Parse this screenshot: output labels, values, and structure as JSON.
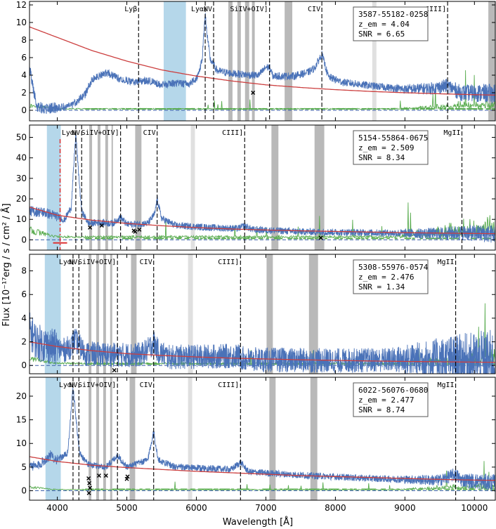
{
  "figure": {
    "xlabel": "Wavelength [Å]",
    "ylabel": "Flux [10⁻¹⁷erg / s / cm² / Å]"
  },
  "chart_data": [
    {
      "type": "line",
      "object_id": "3587-55182-0258",
      "redshift_label": "z_em = 4.04",
      "snr_label": "SNR = 6.65",
      "z": 4.04,
      "snr": 6.65,
      "xlim": [
        3600,
        10300
      ],
      "ylim": [
        -1.2,
        12.4
      ],
      "yticks": [
        0,
        2,
        4,
        6,
        8,
        10,
        12
      ],
      "line_labels": [
        {
          "name": "Lyβ",
          "wavelength": 5169
        },
        {
          "name": "Lyα",
          "wavelength": 6127
        },
        {
          "name": "NV",
          "wavelength": 6248
        },
        {
          "name": "SiIV+OIV]",
          "wavelength": 7053
        },
        {
          "name": "CIV",
          "wavelength": 7805
        },
        {
          "name": "CIII]",
          "wavelength": 9614
        }
      ],
      "blue_band": [
        5530,
        5850
      ],
      "gray_bands": [
        [
          6460,
          6520
        ],
        [
          6590,
          6640
        ],
        [
          6700,
          6760
        ],
        [
          6800,
          6840
        ],
        [
          7270,
          7380
        ],
        [
          10200,
          10300
        ]
      ],
      "light_bands": [
        [
          8530,
          8590
        ]
      ],
      "continuum_fit": [
        [
          3600,
          9.5
        ],
        [
          4000,
          8.3
        ],
        [
          4500,
          6.8
        ],
        [
          5000,
          5.6
        ],
        [
          5500,
          4.6
        ],
        [
          6000,
          3.9
        ],
        [
          6500,
          3.35
        ],
        [
          7000,
          2.9
        ],
        [
          7500,
          2.6
        ],
        [
          8000,
          2.35
        ],
        [
          8500,
          2.15
        ],
        [
          9000,
          2.0
        ],
        [
          9500,
          1.88
        ],
        [
          10000,
          1.78
        ],
        [
          10300,
          1.73
        ]
      ],
      "absorbers": [
        [
          6815,
          2.0
        ]
      ],
      "spectrum_points": [
        [
          3600,
          4.8
        ],
        [
          3700,
          0.5
        ],
        [
          3800,
          0.2
        ],
        [
          4000,
          0.3
        ],
        [
          4200,
          0.5
        ],
        [
          4400,
          1.8
        ],
        [
          4500,
          3.5
        ],
        [
          4700,
          4.3
        ],
        [
          4900,
          3.6
        ],
        [
          5100,
          3.2
        ],
        [
          5300,
          3.4
        ],
        [
          5500,
          2.9
        ],
        [
          5700,
          3.1
        ],
        [
          5900,
          3.0
        ],
        [
          6000,
          3.6
        ],
        [
          6080,
          5.5
        ],
        [
          6127,
          11.0
        ],
        [
          6160,
          8.3
        ],
        [
          6200,
          5.8
        ],
        [
          6300,
          4.5
        ],
        [
          6500,
          4.2
        ],
        [
          6800,
          4.0
        ],
        [
          6900,
          4.0
        ],
        [
          7000,
          4.9
        ],
        [
          7053,
          4.9
        ],
        [
          7100,
          3.9
        ],
        [
          7400,
          3.9
        ],
        [
          7600,
          4.3
        ],
        [
          7700,
          4.8
        ],
        [
          7805,
          6.4
        ],
        [
          7900,
          3.8
        ],
        [
          8100,
          3.2
        ],
        [
          8500,
          2.8
        ],
        [
          9000,
          2.4
        ],
        [
          9400,
          2.5
        ],
        [
          9614,
          2.8
        ],
        [
          9800,
          2.0
        ],
        [
          10300,
          1.9
        ]
      ],
      "error_level": 0.4
    },
    {
      "type": "line",
      "object_id": "5154-55864-0675",
      "redshift_label": "z_em = 2.509",
      "snr_label": "SNR = 8.34",
      "z": 2.509,
      "snr": 8.34,
      "xlim": [
        3600,
        10300
      ],
      "ylim": [
        -5,
        56
      ],
      "yticks": [
        0,
        10,
        20,
        30,
        40,
        50
      ],
      "line_labels": [
        {
          "name": "Lyα",
          "wavelength": 4266
        },
        {
          "name": "NV",
          "wavelength": 4350
        },
        {
          "name": "SiIV+OIV]",
          "wavelength": 4910
        },
        {
          "name": "CIV",
          "wavelength": 5436
        },
        {
          "name": "CIII]",
          "wavelength": 6695
        },
        {
          "name": "MgII",
          "wavelength": 9820
        }
      ],
      "blue_band": [
        3850,
        4050
      ],
      "gray_bands": [
        [
          4460,
          4500
        ],
        [
          4580,
          4620
        ],
        [
          4690,
          4730
        ],
        [
          4780,
          4800
        ],
        [
          5120,
          5210
        ],
        [
          7080,
          7180
        ],
        [
          7700,
          7840
        ]
      ],
      "light_bands": [
        [
          5920,
          5980
        ]
      ],
      "continuum_fit": [
        [
          3600,
          16.0
        ],
        [
          4000,
          12.0
        ],
        [
          4500,
          9.6
        ],
        [
          5000,
          8.0
        ],
        [
          5500,
          6.9
        ],
        [
          6000,
          6.0
        ],
        [
          6500,
          5.3
        ],
        [
          7000,
          4.8
        ],
        [
          7500,
          4.4
        ],
        [
          8000,
          4.1
        ],
        [
          8500,
          3.8
        ],
        [
          9000,
          3.5
        ],
        [
          9500,
          3.3
        ],
        [
          10000,
          3.1
        ],
        [
          10300,
          3.0
        ]
      ],
      "absorbers": [
        [
          4470,
          6.0
        ],
        [
          4640,
          7.0
        ],
        [
          5100,
          4.5
        ],
        [
          5120,
          4.0
        ],
        [
          5180,
          5.0
        ],
        [
          7790,
          1.0
        ]
      ],
      "dla_marker": 4040,
      "spectrum_points": [
        [
          3600,
          14.0
        ],
        [
          3800,
          13.5
        ],
        [
          4000,
          11.5
        ],
        [
          4100,
          9.5
        ],
        [
          4200,
          16.0
        ],
        [
          4266,
          52.0
        ],
        [
          4300,
          35.0
        ],
        [
          4350,
          14.0
        ],
        [
          4450,
          8.0
        ],
        [
          4600,
          8.5
        ],
        [
          4800,
          8.0
        ],
        [
          4910,
          11.0
        ],
        [
          5000,
          7.5
        ],
        [
          5300,
          8.0
        ],
        [
          5400,
          12.5
        ],
        [
          5436,
          20.0
        ],
        [
          5500,
          10.5
        ],
        [
          5700,
          7.0
        ],
        [
          6200,
          6.0
        ],
        [
          6600,
          5.5
        ],
        [
          6695,
          7.0
        ],
        [
          6800,
          5.0
        ],
        [
          7500,
          4.0
        ],
        [
          8500,
          3.5
        ],
        [
          9500,
          3.0
        ],
        [
          9820,
          3.5
        ],
        [
          10300,
          2.8
        ]
      ],
      "error_level": 0.8
    },
    {
      "type": "line",
      "object_id": "5308-55976-0574",
      "redshift_label": "z_em = 2.476",
      "snr_label": "SNR = 1.34",
      "z": 2.476,
      "snr": 1.34,
      "xlim": [
        3600,
        10300
      ],
      "ylim": [
        -0.7,
        9.4
      ],
      "yticks": [
        0,
        2,
        4,
        6,
        8
      ],
      "line_labels": [
        {
          "name": "Lyα",
          "wavelength": 4226
        },
        {
          "name": "NV",
          "wavelength": 4310
        },
        {
          "name": "SiIV+OIV]",
          "wavelength": 4865
        },
        {
          "name": "CIV",
          "wavelength": 5386
        },
        {
          "name": "CIII]",
          "wavelength": 6635
        },
        {
          "name": "MgII",
          "wavelength": 9730
        }
      ],
      "blue_band": [
        3820,
        4050
      ],
      "gray_bands": [
        [
          4450,
          4490
        ],
        [
          4560,
          4600
        ],
        [
          4660,
          4700
        ],
        [
          4760,
          4790
        ],
        [
          5060,
          5140
        ],
        [
          7010,
          7100
        ],
        [
          7620,
          7750
        ]
      ],
      "light_bands": [
        [
          5880,
          5950
        ]
      ],
      "continuum_fit": [
        [
          3600,
          2.0
        ],
        [
          4000,
          1.6
        ],
        [
          4500,
          1.25
        ],
        [
          5000,
          1.0
        ],
        [
          5500,
          0.85
        ],
        [
          6000,
          0.72
        ],
        [
          6500,
          0.62
        ],
        [
          7000,
          0.55
        ],
        [
          7500,
          0.48
        ],
        [
          8000,
          0.43
        ],
        [
          8500,
          0.38
        ],
        [
          9000,
          0.34
        ],
        [
          9500,
          0.31
        ],
        [
          10000,
          0.28
        ],
        [
          10300,
          0.27
        ]
      ],
      "absorbers": [
        [
          4820,
          -0.4
        ]
      ],
      "spectrum_points": [
        [
          3600,
          3.0
        ],
        [
          3700,
          2.0
        ],
        [
          3900,
          1.6
        ],
        [
          4100,
          1.3
        ],
        [
          4200,
          1.6
        ],
        [
          4250,
          2.2
        ],
        [
          4300,
          1.8
        ],
        [
          4400,
          1.0
        ],
        [
          4800,
          0.9
        ],
        [
          5200,
          0.9
        ],
        [
          5300,
          1.3
        ],
        [
          5386,
          2.0
        ],
        [
          5450,
          1.2
        ],
        [
          5600,
          0.7
        ],
        [
          6600,
          0.8
        ],
        [
          6700,
          0.5
        ],
        [
          8000,
          0.4
        ],
        [
          9000,
          0.5
        ],
        [
          9700,
          0.5
        ],
        [
          10300,
          0.3
        ]
      ],
      "error_level": 0.6
    },
    {
      "type": "line",
      "object_id": "6022-56076-0680",
      "redshift_label": "z_em = 2.477",
      "snr_label": "SNR = 8.74",
      "z": 2.477,
      "snr": 8.74,
      "xlim": [
        3600,
        10300
      ],
      "ylim": [
        -2,
        24
      ],
      "yticks": [
        0,
        5,
        10,
        15,
        20
      ],
      "line_labels": [
        {
          "name": "Lyα",
          "wavelength": 4226
        },
        {
          "name": "NV",
          "wavelength": 4310
        },
        {
          "name": "SiIV+OIV]",
          "wavelength": 4865
        },
        {
          "name": "CIV",
          "wavelength": 5386
        },
        {
          "name": "CIII]",
          "wavelength": 6635
        },
        {
          "name": "MgII",
          "wavelength": 9730
        }
      ],
      "blue_band": [
        3830,
        4050
      ],
      "gray_bands": [
        [
          4450,
          4490
        ],
        [
          4560,
          4600
        ],
        [
          4660,
          4700
        ],
        [
          4760,
          4790
        ],
        [
          5040,
          5120
        ],
        [
          7050,
          7140
        ],
        [
          7640,
          7740
        ]
      ],
      "light_bands": [
        [
          5880,
          5940
        ]
      ],
      "continuum_fit": [
        [
          3600,
          7.2
        ],
        [
          4000,
          6.2
        ],
        [
          4500,
          5.4
        ],
        [
          5000,
          4.9
        ],
        [
          5500,
          4.5
        ],
        [
          6000,
          4.1
        ],
        [
          6500,
          3.8
        ],
        [
          7000,
          3.5
        ],
        [
          7500,
          3.2
        ],
        [
          8000,
          3.0
        ],
        [
          8500,
          2.8
        ],
        [
          9000,
          2.6
        ],
        [
          9500,
          2.4
        ],
        [
          10000,
          2.25
        ],
        [
          10300,
          2.2
        ]
      ],
      "absorbers": [
        [
          4450,
          2.6
        ],
        [
          4460,
          1.6
        ],
        [
          4470,
          0.6
        ],
        [
          4455,
          -0.5
        ],
        [
          4600,
          3.2
        ],
        [
          4700,
          3.2
        ],
        [
          5000,
          2.5
        ],
        [
          5010,
          3.0
        ]
      ],
      "spectrum_points": [
        [
          3600,
          5.5
        ],
        [
          3700,
          5.0
        ],
        [
          3900,
          7.5
        ],
        [
          4000,
          6.5
        ],
        [
          4150,
          8.0
        ],
        [
          4226,
          22.0
        ],
        [
          4270,
          15.0
        ],
        [
          4320,
          8.0
        ],
        [
          4450,
          5.5
        ],
        [
          4700,
          5.0
        ],
        [
          4865,
          7.5
        ],
        [
          5000,
          5.0
        ],
        [
          5300,
          6.5
        ],
        [
          5386,
          12.5
        ],
        [
          5450,
          6.5
        ],
        [
          5700,
          5.0
        ],
        [
          6500,
          4.5
        ],
        [
          6635,
          6.0
        ],
        [
          6750,
          4.0
        ],
        [
          7500,
          3.3
        ],
        [
          8500,
          2.6
        ],
        [
          9500,
          2.2
        ],
        [
          9730,
          3.5
        ],
        [
          9800,
          2.3
        ],
        [
          10300,
          1.6
        ]
      ],
      "error_level": 0.3
    }
  ]
}
